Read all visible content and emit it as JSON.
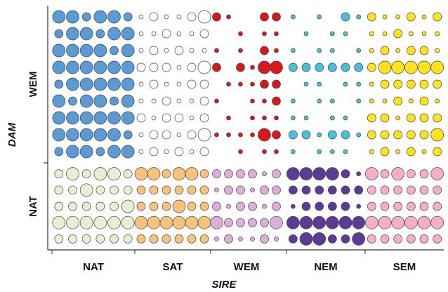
{
  "chart_data": {
    "type": "bubble-matrix",
    "x_label": "SIRE",
    "y_label": "DAM",
    "categories": [
      "NAT",
      "SAT",
      "WEM",
      "NEM",
      "SEM"
    ],
    "rows": [
      "WEM",
      "NAT"
    ],
    "cells": [
      [
        {
          "color": "#5b9bd5",
          "sizes": [
            [
              3,
              3,
              2,
              3,
              3,
              2
            ],
            [
              2,
              3,
              3,
              2,
              3,
              3
            ],
            [
              3,
              3,
              3,
              3,
              2,
              3
            ],
            [
              3,
              3,
              3,
              3,
              3,
              3
            ],
            [
              2,
              3,
              3,
              3,
              3,
              3
            ],
            [
              3,
              2,
              3,
              3,
              2,
              3
            ],
            [
              3,
              3,
              3,
              3,
              3,
              3
            ],
            [
              3,
              3,
              3,
              3,
              3,
              2
            ],
            [
              2,
              3,
              3,
              2,
              3,
              3
            ]
          ]
        },
        {
          "color": "#ffffff",
          "sizes": [
            [
              1,
              2,
              1,
              1,
              2,
              3
            ],
            [
              1,
              1,
              2,
              1,
              1,
              2
            ],
            [
              1,
              2,
              1,
              2,
              1,
              1
            ],
            [
              2,
              2,
              2,
              1,
              2,
              3
            ],
            [
              1,
              2,
              1,
              1,
              2,
              2
            ],
            [
              1,
              1,
              2,
              1,
              1,
              2
            ],
            [
              2,
              1,
              2,
              2,
              1,
              2
            ],
            [
              1,
              2,
              2,
              1,
              2,
              3
            ],
            [
              1,
              2,
              1,
              2,
              1,
              2
            ]
          ]
        },
        {
          "color": "#d7191c",
          "sizes": [
            [
              2,
              1,
              0,
              0,
              2,
              2
            ],
            [
              0,
              0,
              1,
              0,
              1,
              1
            ],
            [
              1,
              0,
              1,
              0,
              2,
              1
            ],
            [
              2,
              0,
              2,
              1,
              3,
              3
            ],
            [
              0,
              1,
              1,
              1,
              2,
              2
            ],
            [
              1,
              0,
              0,
              1,
              1,
              2
            ],
            [
              0,
              1,
              0,
              1,
              1,
              1
            ],
            [
              1,
              1,
              1,
              1,
              3,
              2
            ],
            [
              0,
              0,
              1,
              0,
              1,
              1
            ]
          ]
        },
        {
          "color": "#4bbfd6",
          "sizes": [
            [
              1,
              0,
              1,
              0,
              2,
              1
            ],
            [
              0,
              1,
              0,
              1,
              1,
              0
            ],
            [
              1,
              0,
              1,
              1,
              0,
              1
            ],
            [
              2,
              2,
              2,
              2,
              2,
              2
            ],
            [
              0,
              1,
              1,
              0,
              1,
              1
            ],
            [
              1,
              0,
              1,
              1,
              0,
              1
            ],
            [
              1,
              1,
              0,
              1,
              1,
              0
            ],
            [
              2,
              2,
              1,
              2,
              2,
              1
            ],
            [
              1,
              0,
              1,
              1,
              1,
              0
            ]
          ]
        },
        {
          "color": "#ffe31a",
          "sizes": [
            [
              2,
              1,
              1,
              2,
              1,
              2
            ],
            [
              1,
              1,
              2,
              1,
              1,
              1
            ],
            [
              1,
              2,
              1,
              2,
              2,
              1
            ],
            [
              2,
              3,
              3,
              3,
              3,
              3
            ],
            [
              1,
              2,
              2,
              2,
              2,
              2
            ],
            [
              1,
              1,
              2,
              1,
              2,
              1
            ],
            [
              2,
              2,
              1,
              2,
              2,
              2
            ],
            [
              2,
              2,
              2,
              2,
              2,
              3
            ],
            [
              1,
              2,
              1,
              2,
              1,
              2
            ]
          ]
        }
      ],
      [
        {
          "color": "#e8eed2",
          "sizes": [
            [
              2,
              3,
              2,
              3,
              3,
              2
            ],
            [
              2,
              2,
              3,
              2,
              2,
              2
            ],
            [
              2,
              2,
              2,
              2,
              2,
              3
            ],
            [
              3,
              3,
              3,
              3,
              3,
              3
            ],
            [
              2,
              2,
              2,
              2,
              2,
              2
            ]
          ]
        },
        {
          "color": "#f6c27c",
          "sizes": [
            [
              3,
              3,
              2,
              3,
              3,
              2
            ],
            [
              2,
              2,
              2,
              2,
              2,
              2
            ],
            [
              2,
              2,
              2,
              3,
              2,
              2
            ],
            [
              3,
              3,
              3,
              3,
              3,
              3
            ],
            [
              2,
              2,
              2,
              2,
              2,
              2
            ]
          ]
        },
        {
          "color": "#dbaedb",
          "sizes": [
            [
              2,
              2,
              2,
              2,
              1,
              2
            ],
            [
              1,
              2,
              2,
              1,
              2,
              2
            ],
            [
              2,
              1,
              2,
              2,
              1,
              2
            ],
            [
              3,
              2,
              2,
              2,
              2,
              3
            ],
            [
              1,
              2,
              1,
              1,
              2,
              1
            ]
          ]
        },
        {
          "color": "#5c3b97",
          "sizes": [
            [
              3,
              3,
              3,
              3,
              2,
              1
            ],
            [
              2,
              2,
              2,
              2,
              2,
              2
            ],
            [
              1,
              2,
              2,
              2,
              2,
              1
            ],
            [
              3,
              3,
              3,
              3,
              3,
              3
            ],
            [
              2,
              3,
              3,
              2,
              2,
              3
            ]
          ]
        },
        {
          "color": "#f5adcc",
          "sizes": [
            [
              3,
              2,
              3,
              2,
              2,
              3
            ],
            [
              2,
              2,
              2,
              2,
              2,
              2
            ],
            [
              2,
              2,
              2,
              2,
              2,
              2
            ],
            [
              3,
              3,
              3,
              3,
              3,
              3
            ],
            [
              2,
              2,
              2,
              2,
              2,
              2
            ]
          ]
        }
      ]
    ]
  }
}
